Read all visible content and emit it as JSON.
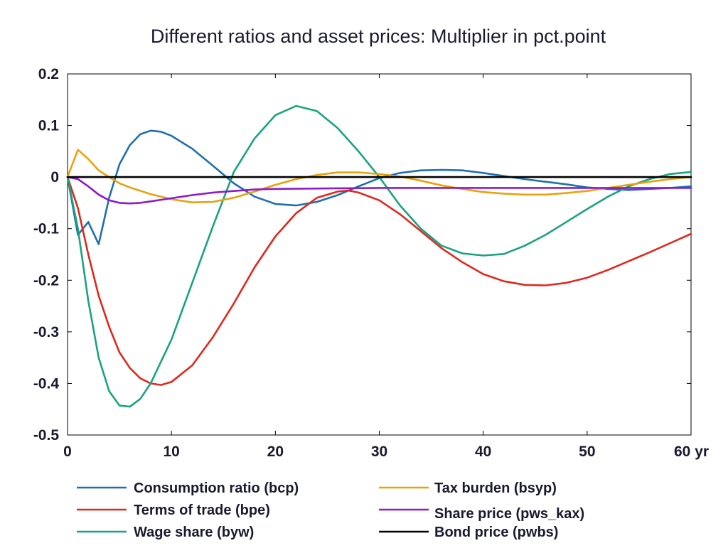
{
  "chart_data": {
    "type": "line",
    "title": "Different ratios and asset prices: Multiplier in pct.point",
    "xlabel": "",
    "ylabel": "",
    "xlim": [
      0,
      60
    ],
    "ylim": [
      -0.5,
      0.2
    ],
    "x_ticks": [
      0,
      10,
      20,
      30,
      40,
      50,
      60
    ],
    "x_tick_labels": [
      "0",
      "10",
      "20",
      "30",
      "40",
      "50",
      "60 yr"
    ],
    "y_ticks": [
      -0.5,
      -0.4,
      -0.3,
      -0.2,
      -0.1,
      0,
      0.1,
      0.2
    ],
    "y_tick_labels": [
      "-0.5",
      "-0.4",
      "-0.3",
      "-0.2",
      "-0.1",
      "0",
      "0.1",
      "0.2"
    ],
    "grid": false,
    "legend_position": "bottom",
    "series": [
      {
        "name": "Consumption ratio (bcp)",
        "color": "#1f6fb0",
        "points": [
          [
            0,
            0
          ],
          [
            1,
            -0.112
          ],
          [
            2,
            -0.087
          ],
          [
            3,
            -0.13
          ],
          [
            4,
            -0.04
          ],
          [
            5,
            0.025
          ],
          [
            6,
            0.062
          ],
          [
            7,
            0.083
          ],
          [
            8,
            0.09
          ],
          [
            9,
            0.088
          ],
          [
            10,
            0.08
          ],
          [
            12,
            0.055
          ],
          [
            14,
            0.022
          ],
          [
            16,
            -0.012
          ],
          [
            18,
            -0.038
          ],
          [
            20,
            -0.052
          ],
          [
            22,
            -0.055
          ],
          [
            24,
            -0.048
          ],
          [
            26,
            -0.035
          ],
          [
            28,
            -0.018
          ],
          [
            30,
            -0.002
          ],
          [
            32,
            0.008
          ],
          [
            34,
            0.013
          ],
          [
            36,
            0.014
          ],
          [
            38,
            0.013
          ],
          [
            40,
            0.008
          ],
          [
            42,
            0.002
          ],
          [
            44,
            -0.004
          ],
          [
            46,
            -0.009
          ],
          [
            48,
            -0.014
          ],
          [
            50,
            -0.02
          ],
          [
            52,
            -0.023
          ],
          [
            54,
            -0.025
          ],
          [
            56,
            -0.023
          ],
          [
            58,
            -0.021
          ],
          [
            60,
            -0.018
          ]
        ]
      },
      {
        "name": "Terms of trade (bpe)",
        "color": "#e0281e",
        "points": [
          [
            0,
            0
          ],
          [
            1,
            -0.06
          ],
          [
            2,
            -0.15
          ],
          [
            3,
            -0.23
          ],
          [
            4,
            -0.29
          ],
          [
            5,
            -0.34
          ],
          [
            6,
            -0.37
          ],
          [
            7,
            -0.39
          ],
          [
            8,
            -0.4
          ],
          [
            9,
            -0.403
          ],
          [
            10,
            -0.397
          ],
          [
            12,
            -0.365
          ],
          [
            14,
            -0.31
          ],
          [
            16,
            -0.245
          ],
          [
            18,
            -0.175
          ],
          [
            20,
            -0.115
          ],
          [
            22,
            -0.07
          ],
          [
            24,
            -0.04
          ],
          [
            26,
            -0.028
          ],
          [
            27,
            -0.026
          ],
          [
            28,
            -0.03
          ],
          [
            30,
            -0.045
          ],
          [
            32,
            -0.072
          ],
          [
            34,
            -0.105
          ],
          [
            36,
            -0.138
          ],
          [
            38,
            -0.165
          ],
          [
            40,
            -0.188
          ],
          [
            42,
            -0.202
          ],
          [
            44,
            -0.209
          ],
          [
            46,
            -0.21
          ],
          [
            48,
            -0.205
          ],
          [
            50,
            -0.195
          ],
          [
            52,
            -0.18
          ],
          [
            54,
            -0.163
          ],
          [
            56,
            -0.146
          ],
          [
            58,
            -0.128
          ],
          [
            60,
            -0.11
          ]
        ]
      },
      {
        "name": "Wage share (byw)",
        "color": "#1aa37f",
        "points": [
          [
            0,
            0
          ],
          [
            1,
            -0.1
          ],
          [
            2,
            -0.24
          ],
          [
            3,
            -0.35
          ],
          [
            4,
            -0.415
          ],
          [
            5,
            -0.443
          ],
          [
            6,
            -0.445
          ],
          [
            7,
            -0.43
          ],
          [
            8,
            -0.4
          ],
          [
            10,
            -0.315
          ],
          [
            12,
            -0.205
          ],
          [
            14,
            -0.095
          ],
          [
            16,
            0.01
          ],
          [
            18,
            0.075
          ],
          [
            20,
            0.12
          ],
          [
            22,
            0.138
          ],
          [
            24,
            0.128
          ],
          [
            26,
            0.095
          ],
          [
            28,
            0.05
          ],
          [
            30,
            0.0
          ],
          [
            32,
            -0.055
          ],
          [
            34,
            -0.1
          ],
          [
            36,
            -0.133
          ],
          [
            38,
            -0.148
          ],
          [
            40,
            -0.152
          ],
          [
            42,
            -0.149
          ],
          [
            44,
            -0.133
          ],
          [
            46,
            -0.112
          ],
          [
            48,
            -0.087
          ],
          [
            50,
            -0.062
          ],
          [
            52,
            -0.038
          ],
          [
            54,
            -0.018
          ],
          [
            56,
            -0.004
          ],
          [
            58,
            0.006
          ],
          [
            60,
            0.01
          ]
        ]
      },
      {
        "name": "Tax burden (bsyp)",
        "color": "#e8a20c",
        "points": [
          [
            0,
            0
          ],
          [
            1,
            0.053
          ],
          [
            2,
            0.035
          ],
          [
            3,
            0.013
          ],
          [
            4,
            0.0
          ],
          [
            5,
            -0.012
          ],
          [
            6,
            -0.02
          ],
          [
            8,
            -0.033
          ],
          [
            10,
            -0.043
          ],
          [
            12,
            -0.049
          ],
          [
            14,
            -0.048
          ],
          [
            16,
            -0.04
          ],
          [
            18,
            -0.028
          ],
          [
            20,
            -0.015
          ],
          [
            22,
            -0.004
          ],
          [
            24,
            0.004
          ],
          [
            26,
            0.009
          ],
          [
            28,
            0.009
          ],
          [
            30,
            0.006
          ],
          [
            32,
            0.001
          ],
          [
            34,
            -0.007
          ],
          [
            36,
            -0.016
          ],
          [
            38,
            -0.023
          ],
          [
            40,
            -0.029
          ],
          [
            42,
            -0.032
          ],
          [
            44,
            -0.034
          ],
          [
            46,
            -0.034
          ],
          [
            48,
            -0.031
          ],
          [
            50,
            -0.027
          ],
          [
            52,
            -0.021
          ],
          [
            54,
            -0.015
          ],
          [
            56,
            -0.009
          ],
          [
            58,
            -0.004
          ],
          [
            60,
            0.0
          ]
        ]
      },
      {
        "name": "Share price (pws_kax)",
        "color": "#8e1bc9",
        "points": [
          [
            0,
            0
          ],
          [
            1,
            -0.004
          ],
          [
            2,
            -0.018
          ],
          [
            3,
            -0.034
          ],
          [
            4,
            -0.045
          ],
          [
            5,
            -0.05
          ],
          [
            6,
            -0.051
          ],
          [
            7,
            -0.05
          ],
          [
            8,
            -0.047
          ],
          [
            10,
            -0.041
          ],
          [
            12,
            -0.035
          ],
          [
            14,
            -0.03
          ],
          [
            16,
            -0.027
          ],
          [
            18,
            -0.024
          ],
          [
            20,
            -0.023
          ],
          [
            25,
            -0.022
          ],
          [
            30,
            -0.021
          ],
          [
            40,
            -0.021
          ],
          [
            50,
            -0.021
          ],
          [
            60,
            -0.021
          ]
        ]
      },
      {
        "name": "Bond price (pwbs)",
        "color": "#000000",
        "points": [
          [
            0,
            0
          ],
          [
            60,
            0
          ]
        ]
      }
    ]
  }
}
